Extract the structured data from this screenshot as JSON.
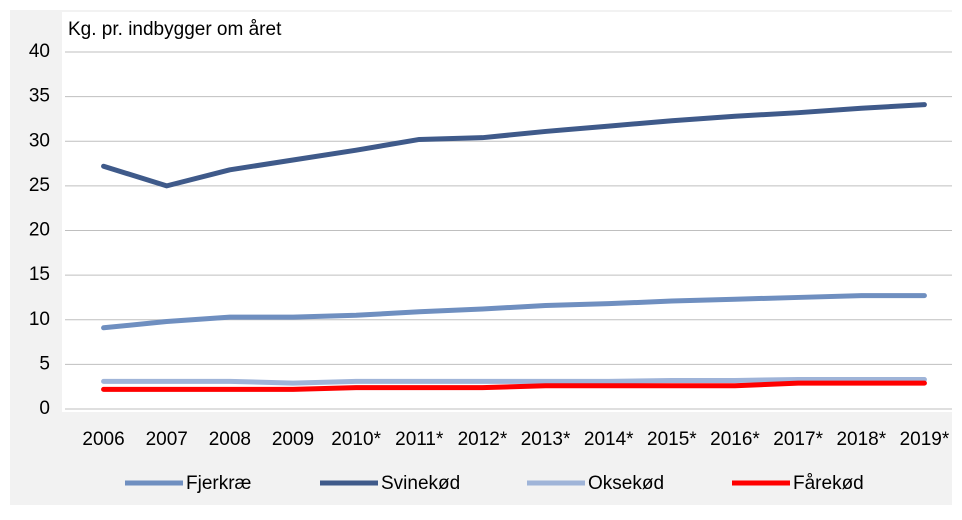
{
  "chart_data": {
    "type": "line",
    "ylabel": "Kg. pr. indbygger om året",
    "categories": [
      "2006",
      "2007",
      "2008",
      "2009",
      "2010*",
      "2011*",
      "2012*",
      "2013*",
      "2014*",
      "2015*",
      "2016*",
      "2017*",
      "2018*",
      "2019*"
    ],
    "series": [
      {
        "name": "Fjerkræ",
        "color": "#6f8fc0",
        "values": [
          9.1,
          9.8,
          10.3,
          10.3,
          10.5,
          10.9,
          11.2,
          11.6,
          11.8,
          12.1,
          12.3,
          12.5,
          12.7,
          12.7
        ]
      },
      {
        "name": "Svinekød",
        "color": "#3f5a8a",
        "values": [
          27.2,
          25.0,
          26.8,
          27.9,
          29.0,
          30.2,
          30.4,
          31.1,
          31.7,
          32.3,
          32.8,
          33.2,
          33.7,
          34.1
        ]
      },
      {
        "name": "Oksekød",
        "color": "#9fb4d8",
        "values": [
          3.1,
          3.1,
          3.1,
          2.9,
          3.1,
          3.1,
          3.1,
          3.1,
          3.1,
          3.2,
          3.2,
          3.3,
          3.3,
          3.3
        ]
      },
      {
        "name": "Fårekød",
        "color": "#ff0000",
        "values": [
          2.2,
          2.2,
          2.2,
          2.2,
          2.4,
          2.4,
          2.4,
          2.6,
          2.6,
          2.6,
          2.6,
          2.9,
          2.9,
          2.9
        ]
      }
    ],
    "ylim": [
      0,
      40
    ],
    "yticks": [
      0,
      5,
      10,
      15,
      20,
      25,
      30,
      35,
      40
    ],
    "grid": true
  }
}
